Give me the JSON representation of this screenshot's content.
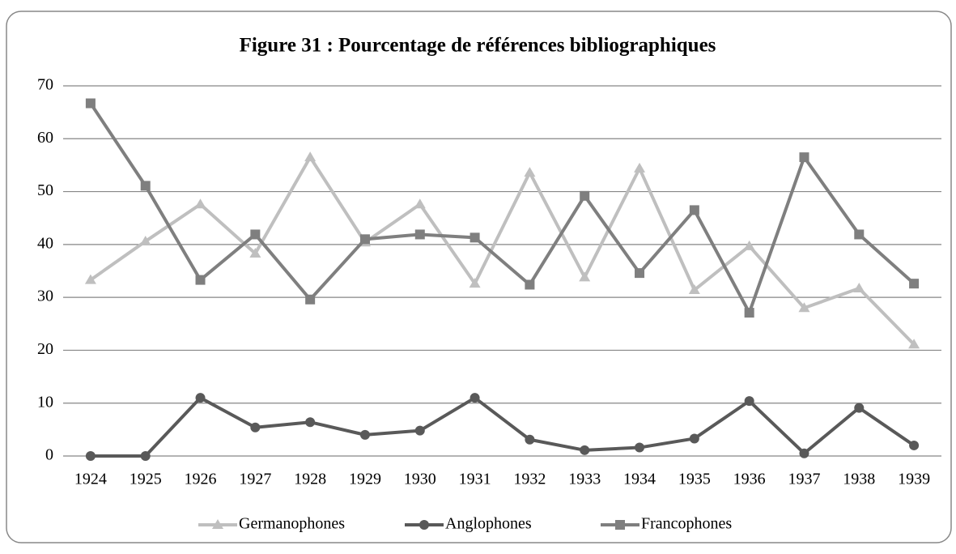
{
  "chart_data": {
    "type": "line",
    "title": "Figure 31 : Pourcentage de références bibliographiques",
    "categories": [
      "1924",
      "1925",
      "1926",
      "1927",
      "1928",
      "1929",
      "1930",
      "1931",
      "1932",
      "1933",
      "1934",
      "1935",
      "1936",
      "1937",
      "1938",
      "1939"
    ],
    "series": [
      {
        "name": "Germanophones",
        "color": "#bfbfbf",
        "marker": "triangle",
        "values": [
          33.3,
          40.6,
          47.6,
          38.3,
          56.5,
          40.4,
          47.6,
          32.6,
          53.6,
          33.8,
          54.4,
          31.4,
          39.7,
          28.0,
          31.7,
          21.1
        ]
      },
      {
        "name": "Anglophones",
        "color": "#595959",
        "marker": "circle",
        "values": [
          0,
          0,
          11.0,
          5.4,
          6.4,
          4.0,
          4.8,
          11.0,
          3.1,
          1.1,
          1.6,
          3.3,
          10.4,
          0.5,
          9.1,
          2.0
        ]
      },
      {
        "name": "Francophones",
        "color": "#7f7f7f",
        "marker": "square",
        "values": [
          66.7,
          51.1,
          33.3,
          41.9,
          29.6,
          41.0,
          41.9,
          41.3,
          32.4,
          49.2,
          34.6,
          46.5,
          27.1,
          56.5,
          41.9,
          32.6
        ]
      }
    ],
    "ylim": [
      0,
      70
    ],
    "yticks": [
      0,
      10,
      20,
      30,
      40,
      50,
      60,
      70
    ],
    "grid": true,
    "legend": "bottom"
  }
}
